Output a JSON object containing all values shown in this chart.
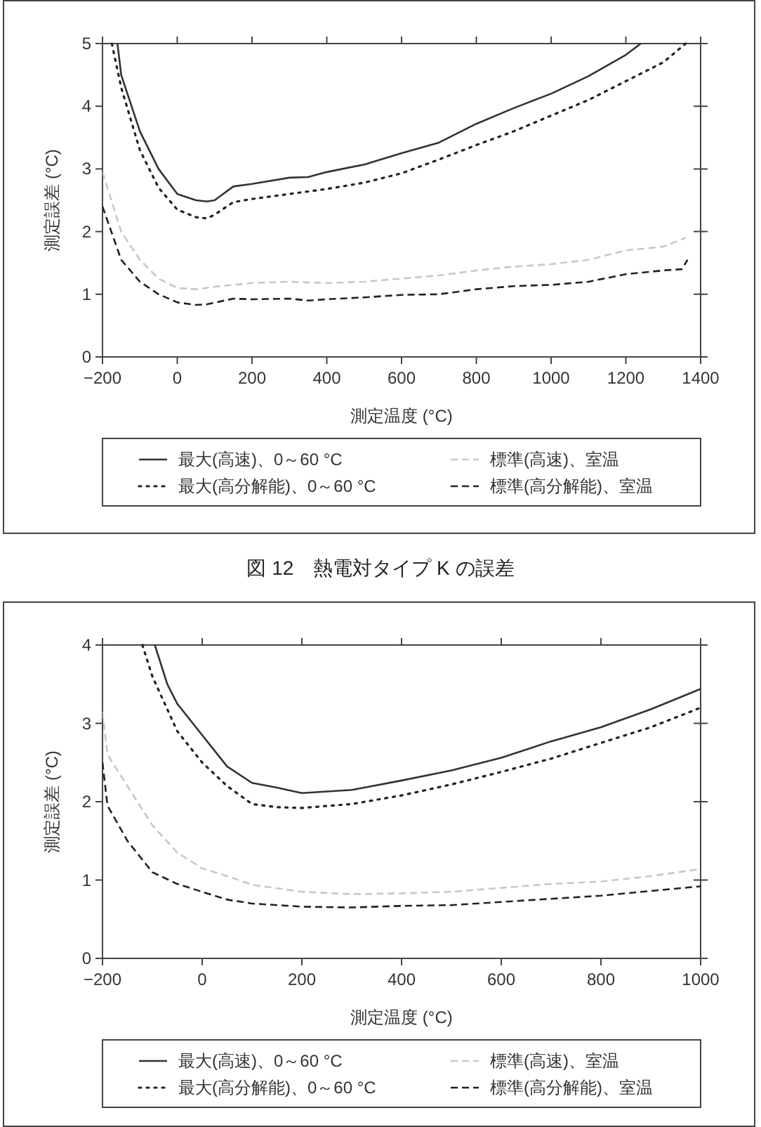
{
  "chart_data": [
    {
      "type": "line",
      "xlabel": "測定温度 (°C)",
      "ylabel": "測定誤差 (°C)",
      "xlim": [
        -200,
        1400
      ],
      "ylim": [
        0,
        5
      ],
      "xticks": [
        {
          "value": -200,
          "label": "−200"
        },
        0,
        200,
        400,
        600,
        800,
        1000,
        1200,
        1400
      ],
      "yticks": [
        0,
        1,
        2,
        3,
        4,
        5
      ],
      "grid": false,
      "legend": "bottom",
      "annotations": [
        "図 12　熱電対タイプ K の誤差"
      ],
      "series": [
        {
          "name": "最大(高速)、0～60 °C",
          "color": "#333333",
          "line_style": "solid",
          "x": [
            -160,
            -150,
            -100,
            -50,
            0,
            50,
            80,
            100,
            150,
            200,
            300,
            350,
            400,
            500,
            600,
            700,
            800,
            900,
            1000,
            1100,
            1200,
            1240
          ],
          "values": [
            5.0,
            4.5,
            3.6,
            3.0,
            2.6,
            2.5,
            2.48,
            2.5,
            2.72,
            2.76,
            2.86,
            2.87,
            2.95,
            3.07,
            3.25,
            3.42,
            3.72,
            3.97,
            4.2,
            4.48,
            4.82,
            5.0
          ]
        },
        {
          "name": "最大(高分解能)、0～60 °C",
          "color": "#222222",
          "line_style": "dotted",
          "x": [
            -175,
            -150,
            -100,
            -50,
            0,
            50,
            80,
            100,
            150,
            200,
            300,
            400,
            500,
            600,
            700,
            800,
            900,
            1000,
            1100,
            1200,
            1300,
            1360
          ],
          "values": [
            5.0,
            4.3,
            3.3,
            2.7,
            2.35,
            2.23,
            2.21,
            2.27,
            2.47,
            2.52,
            2.6,
            2.68,
            2.78,
            2.93,
            3.15,
            3.38,
            3.6,
            3.85,
            4.1,
            4.4,
            4.7,
            5.0
          ]
        },
        {
          "name": "標準(高速)、室温",
          "color": "#c8c8c8",
          "line_style": "dashed",
          "x": [
            -200,
            -150,
            -100,
            -50,
            0,
            50,
            100,
            200,
            300,
            400,
            500,
            600,
            700,
            800,
            900,
            1000,
            1100,
            1200,
            1300,
            1360
          ],
          "values": [
            2.95,
            2.0,
            1.55,
            1.25,
            1.1,
            1.08,
            1.12,
            1.18,
            1.2,
            1.18,
            1.2,
            1.25,
            1.3,
            1.38,
            1.44,
            1.48,
            1.55,
            1.7,
            1.76,
            1.9
          ]
        },
        {
          "name": "標準(高分解能)、室温",
          "color": "#222222",
          "line_style": "dashed",
          "x": [
            -200,
            -150,
            -100,
            -50,
            0,
            50,
            80,
            150,
            200,
            300,
            350,
            400,
            500,
            600,
            700,
            800,
            900,
            1000,
            1100,
            1200,
            1300,
            1350,
            1365
          ],
          "values": [
            2.4,
            1.55,
            1.2,
            1.0,
            0.87,
            0.83,
            0.84,
            0.93,
            0.92,
            0.93,
            0.9,
            0.92,
            0.95,
            0.99,
            1.0,
            1.08,
            1.13,
            1.15,
            1.2,
            1.32,
            1.38,
            1.4,
            1.55
          ]
        }
      ]
    },
    {
      "type": "line",
      "xlabel": "測定温度 (°C)",
      "ylabel": "測定誤差 (°C)",
      "xlim": [
        -200,
        1000
      ],
      "ylim": [
        0,
        4
      ],
      "xticks": [
        {
          "value": -200,
          "label": "−200"
        },
        0,
        200,
        400,
        600,
        800,
        1000
      ],
      "yticks": [
        0,
        1,
        2,
        3,
        4
      ],
      "grid": false,
      "legend": "bottom",
      "series": [
        {
          "name": "最大(高速)、0～60 °C",
          "color": "#333333",
          "line_style": "solid",
          "x": [
            -95,
            -70,
            -50,
            0,
            50,
            100,
            150,
            200,
            250,
            300,
            400,
            500,
            600,
            700,
            800,
            900,
            1000
          ],
          "values": [
            4.0,
            3.5,
            3.25,
            2.85,
            2.45,
            2.24,
            2.18,
            2.11,
            2.13,
            2.15,
            2.27,
            2.4,
            2.56,
            2.77,
            2.95,
            3.18,
            3.44
          ]
        },
        {
          "name": "最大(高分解能)、0～60 °C",
          "color": "#222222",
          "line_style": "dotted",
          "x": [
            -120,
            -100,
            -50,
            0,
            50,
            100,
            150,
            200,
            300,
            400,
            500,
            600,
            700,
            800,
            900,
            1000
          ],
          "values": [
            4.0,
            3.6,
            2.9,
            2.5,
            2.2,
            1.97,
            1.93,
            1.92,
            1.97,
            2.08,
            2.22,
            2.38,
            2.55,
            2.75,
            2.95,
            3.2
          ]
        },
        {
          "name": "標準(高速)、室温",
          "color": "#c8c8c8",
          "line_style": "dashed",
          "x": [
            -200,
            -190,
            -150,
            -100,
            -50,
            0,
            50,
            100,
            200,
            300,
            400,
            500,
            600,
            700,
            800,
            900,
            1000
          ],
          "values": [
            3.15,
            2.6,
            2.2,
            1.7,
            1.35,
            1.15,
            1.05,
            0.94,
            0.85,
            0.82,
            0.83,
            0.85,
            0.9,
            0.95,
            0.98,
            1.05,
            1.14
          ]
        },
        {
          "name": "標準(高分解能)、室温",
          "color": "#222222",
          "line_style": "dashed",
          "x": [
            -200,
            -190,
            -150,
            -100,
            -50,
            0,
            50,
            100,
            200,
            300,
            400,
            500,
            600,
            700,
            800,
            900,
            1000
          ],
          "values": [
            2.5,
            1.95,
            1.5,
            1.1,
            0.95,
            0.85,
            0.75,
            0.7,
            0.66,
            0.65,
            0.67,
            0.68,
            0.72,
            0.76,
            0.8,
            0.86,
            0.92
          ]
        }
      ]
    }
  ]
}
